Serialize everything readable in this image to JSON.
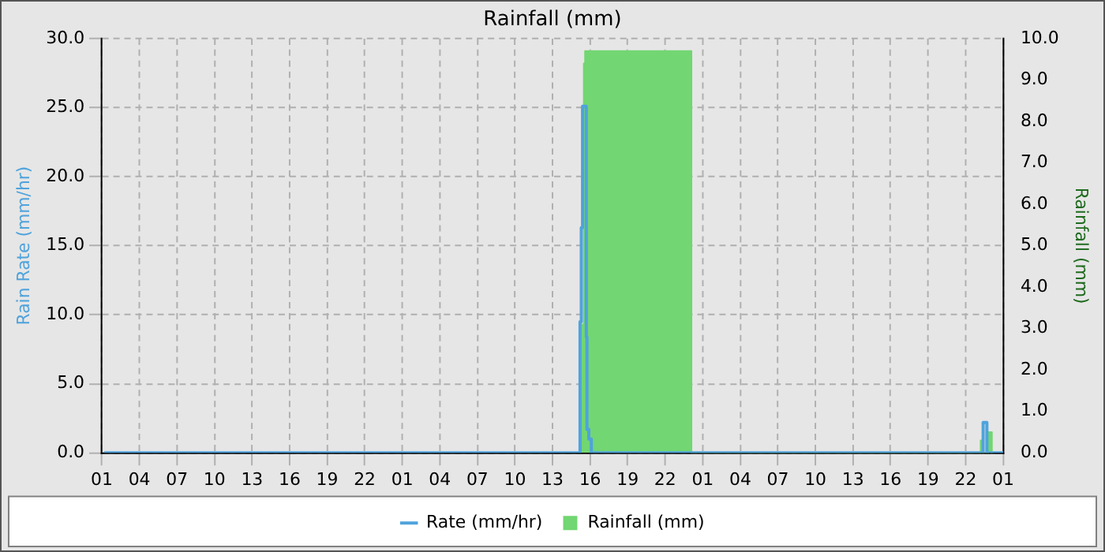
{
  "chart_data": {
    "type": "step",
    "title": "Rainfall (mm)",
    "ylabel": "Rain Rate (mm/hr)",
    "y2label": "Rainfall (mm)",
    "xlim": [
      "--01-01T01:00",
      "--01-04T01:00"
    ],
    "xticks": [
      {
        "value": "--01-01T01:00",
        "label": "01"
      },
      {
        "value": "--01-01T04:00",
        "label": "04"
      },
      {
        "value": "--01-01T07:00",
        "label": "07"
      },
      {
        "value": "--01-01T10:00",
        "label": "10"
      },
      {
        "value": "--01-01T13:00",
        "label": "13"
      },
      {
        "value": "--01-01T16:00",
        "label": "16"
      },
      {
        "value": "--01-01T19:00",
        "label": "19"
      },
      {
        "value": "--01-01T22:00",
        "label": "22"
      },
      {
        "value": "--01-02T01:00",
        "label": "01"
      },
      {
        "value": "--01-02T04:00",
        "label": "04"
      },
      {
        "value": "--01-02T07:00",
        "label": "07"
      },
      {
        "value": "--01-02T10:00",
        "label": "10"
      },
      {
        "value": "--01-02T13:00",
        "label": "13"
      },
      {
        "value": "--01-02T16:00",
        "label": "16"
      },
      {
        "value": "--01-02T19:00",
        "label": "19"
      },
      {
        "value": "--01-02T22:00",
        "label": "22"
      },
      {
        "value": "--01-03T01:00",
        "label": "01"
      },
      {
        "value": "--01-03T04:00",
        "label": "04"
      },
      {
        "value": "--01-03T07:00",
        "label": "07"
      },
      {
        "value": "--01-03T10:00",
        "label": "10"
      },
      {
        "value": "--01-03T13:00",
        "label": "13"
      },
      {
        "value": "--01-03T16:00",
        "label": "16"
      },
      {
        "value": "--01-03T19:00",
        "label": "19"
      },
      {
        "value": "--01-03T22:00",
        "label": "22"
      },
      {
        "value": "--01-04T01:00",
        "label": "01"
      }
    ],
    "ylim": [
      0,
      30
    ],
    "yticks": [
      {
        "value": 0,
        "label": "0.0"
      },
      {
        "value": 5,
        "label": "5.0"
      },
      {
        "value": 10,
        "label": "10.0"
      },
      {
        "value": 15,
        "label": "15.0"
      },
      {
        "value": 20,
        "label": "20.0"
      },
      {
        "value": 25,
        "label": "25.0"
      },
      {
        "value": 30,
        "label": "30.0"
      }
    ],
    "y2lim": [
      0,
      10
    ],
    "y2ticks": [
      {
        "value": 0,
        "label": "0.0"
      },
      {
        "value": 1,
        "label": "1.0"
      },
      {
        "value": 2,
        "label": "2.0"
      },
      {
        "value": 3,
        "label": "3.0"
      },
      {
        "value": 4,
        "label": "4.0"
      },
      {
        "value": 5,
        "label": "5.0"
      },
      {
        "value": 6,
        "label": "6.0"
      },
      {
        "value": 7,
        "label": "7.0"
      },
      {
        "value": 8,
        "label": "8.0"
      },
      {
        "value": 9,
        "label": "9.0"
      },
      {
        "value": 10,
        "label": "10.0"
      }
    ],
    "grid": true,
    "legend": "bottom",
    "series": [
      {
        "name": "Rate (mm/hr)",
        "color": "#4fa3dc",
        "x": [
          "--01-01T01:12",
          "--01-02T15:12",
          "--01-02T15:18",
          "--01-02T15:24",
          "--01-02T15:42",
          "--01-02T15:45",
          "--01-02T15:54",
          "--01-02T16:06",
          "--01-03T23:24",
          "--01-03T23:42",
          "--01-04T01:00"
        ],
        "values": [
          0,
          9.5,
          16.3,
          25.1,
          8.4,
          1.7,
          1.0,
          0,
          2.2,
          0,
          0
        ]
      },
      {
        "name": "Rainfall (mm)",
        "type": "area",
        "axis": "y2",
        "color": "#72d672",
        "x": [
          "--01-02T15:18",
          "--01-02T15:18",
          "--01-02T15:30",
          "--01-02T15:30",
          "--01-02T15:36",
          "--01-02T15:36",
          "--01-03T00:06",
          "--01-03T00:06",
          "--01-03T23:12",
          "--01-03T23:12",
          "--01-03T23:24",
          "--01-03T23:24",
          "--01-03T23:48",
          "--01-03T23:48",
          "--01-04T00:06",
          "--01-04T00:06"
        ],
        "values": [
          0,
          3.1,
          3.1,
          9.4,
          9.4,
          9.7,
          9.7,
          0,
          0,
          0.3,
          0.3,
          0,
          0,
          0.5,
          0.5,
          0
        ]
      }
    ]
  }
}
